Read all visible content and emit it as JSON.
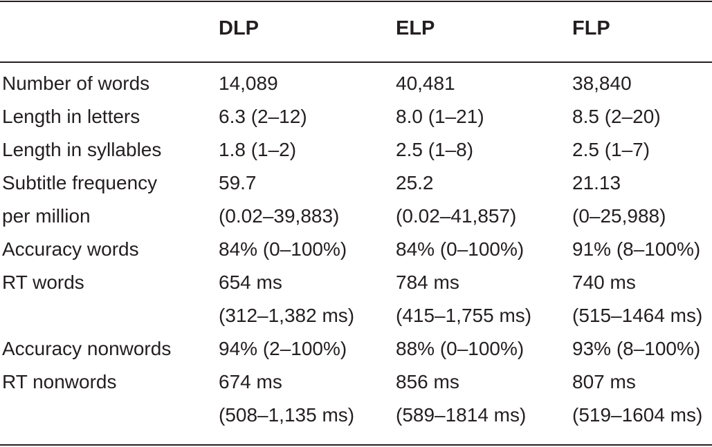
{
  "table": {
    "headers": [
      "",
      "DLP",
      "ELP",
      "FLP"
    ],
    "rows": [
      [
        "Number of words",
        "14,089",
        "40,481",
        "38,840"
      ],
      [
        "Length in letters",
        "6.3 (2–12)",
        "8.0 (1–21)",
        "8.5 (2–20)"
      ],
      [
        "Length in syllables",
        "1.8 (1–2)",
        "2.5 (1–8)",
        "2.5 (1–7)"
      ],
      [
        "Subtitle frequency",
        "59.7",
        "25.2",
        "21.13"
      ],
      [
        "per million",
        "(0.02–39,883)",
        "(0.02–41,857)",
        "(0–25,988)"
      ],
      [
        "Accuracy words",
        "84% (0–100%)",
        "84% (0–100%)",
        "91% (8–100%)"
      ],
      [
        "RT words",
        "654 ms",
        "784 ms",
        "740 ms"
      ],
      [
        "",
        "(312–1,382 ms)",
        "(415–1,755 ms)",
        "(515–1464 ms)"
      ],
      [
        "Accuracy nonwords",
        "94% (2–100%)",
        "88% (0–100%)",
        "93% (8–100%)"
      ],
      [
        "RT nonwords",
        "674 ms",
        "856 ms",
        "807 ms"
      ],
      [
        "",
        "(508–1,135 ms)",
        "(589–1814 ms)",
        "(519–1604 ms)"
      ]
    ]
  }
}
